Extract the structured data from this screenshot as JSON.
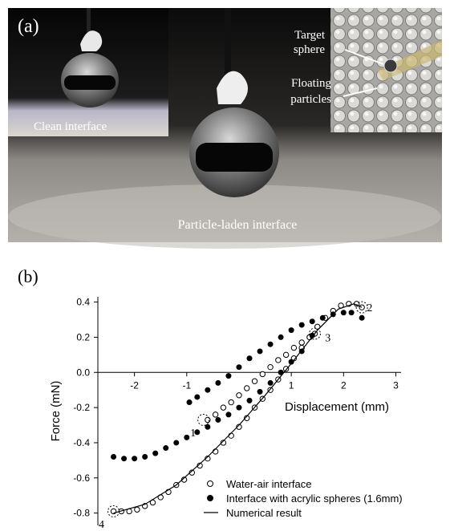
{
  "panel_a": {
    "label": "(a)",
    "target": [
      "Target",
      "sphere"
    ],
    "floating": [
      "Floating",
      "particles"
    ],
    "clean": "Clean interface",
    "laden": "Particle-laden interface"
  },
  "chart_data": {
    "type": "scatter",
    "panel_label": "(b)",
    "xlabel": "Displacement (mm)",
    "ylabel": "Force (mN)",
    "xlim": [
      -2.7,
      3.1
    ],
    "ylim": [
      -0.87,
      0.43
    ],
    "xticks": [
      -2,
      -1,
      1,
      2,
      3
    ],
    "yticks": [
      0.4,
      0.2,
      {
        "value": 0,
        "label": "0.0"
      },
      -0.2,
      -0.4,
      -0.6,
      -0.8
    ],
    "annotations": [
      "1",
      "2",
      "3",
      "4"
    ],
    "legend": "lower right",
    "series": [
      {
        "name": "Water-air interface",
        "style": "open",
        "color": "#000000",
        "x": [
          -2.4,
          -2.25,
          -2.1,
          -1.95,
          -1.8,
          -1.65,
          -1.5,
          -1.35,
          -1.2,
          -1.05,
          -0.9,
          -0.75,
          -0.6,
          -0.45,
          -0.3,
          -0.15,
          0,
          0.15,
          0.3,
          0.45,
          0.6,
          0.75,
          0.9,
          1.05,
          1.2,
          1.35,
          1.5,
          1.65,
          1.8,
          1.95,
          2.1,
          2.25,
          2.35,
          -0.6,
          -0.45,
          -0.3,
          -0.15,
          0,
          0.15,
          0.3,
          0.45,
          0.6,
          0.75,
          0.9,
          1.05,
          1.2,
          1.35,
          1.45
        ],
        "values": [
          -0.79,
          -0.79,
          -0.79,
          -0.78,
          -0.76,
          -0.74,
          -0.71,
          -0.68,
          -0.64,
          -0.61,
          -0.57,
          -0.53,
          -0.49,
          -0.45,
          -0.4,
          -0.36,
          -0.31,
          -0.26,
          -0.2,
          -0.15,
          -0.1,
          -0.04,
          0.02,
          0.08,
          0.14,
          0.2,
          0.26,
          0.31,
          0.35,
          0.38,
          0.39,
          0.39,
          0.37,
          -0.27,
          -0.24,
          -0.2,
          -0.17,
          -0.13,
          -0.09,
          -0.05,
          -0.01,
          0.03,
          0.07,
          0.1,
          0.14,
          0.17,
          0.2,
          0.22
        ]
      },
      {
        "name": "Interface with acrylic spheres (1.6mm)",
        "style": "filled",
        "color": "#000000",
        "x": [
          -2.4,
          -2.2,
          -2.0,
          -1.8,
          -1.6,
          -1.4,
          -1.2,
          -1.0,
          -0.8,
          -0.6,
          -0.4,
          -0.2,
          0,
          0.2,
          0.4,
          0.6,
          0.8,
          1.0,
          1.2,
          1.4,
          -0.95,
          -0.8,
          -0.6,
          -0.4,
          -0.2,
          0,
          0.2,
          0.4,
          0.6,
          0.8,
          1.0,
          1.2,
          1.4,
          1.6,
          1.8,
          2.0,
          2.15,
          2.35
        ],
        "values": [
          -0.48,
          -0.49,
          -0.49,
          -0.48,
          -0.46,
          -0.43,
          -0.4,
          -0.37,
          -0.34,
          -0.31,
          -0.27,
          -0.24,
          -0.2,
          -0.16,
          -0.11,
          -0.06,
          0,
          0.06,
          0.12,
          0.21,
          -0.17,
          -0.14,
          -0.1,
          -0.06,
          -0.02,
          0.03,
          0.08,
          0.12,
          0.16,
          0.2,
          0.24,
          0.27,
          0.29,
          0.31,
          0.33,
          0.34,
          0.34,
          0.31
        ]
      },
      {
        "name": "Numerical result",
        "style": "line",
        "color": "#000000",
        "x": [
          -2.4,
          -1.8,
          -1.2,
          -0.6,
          0,
          0.5,
          1.0,
          1.5,
          1.9,
          2.2,
          2.35
        ],
        "values": [
          -0.8,
          -0.75,
          -0.64,
          -0.48,
          -0.3,
          -0.13,
          0.05,
          0.24,
          0.36,
          0.39,
          0.37
        ]
      }
    ]
  }
}
